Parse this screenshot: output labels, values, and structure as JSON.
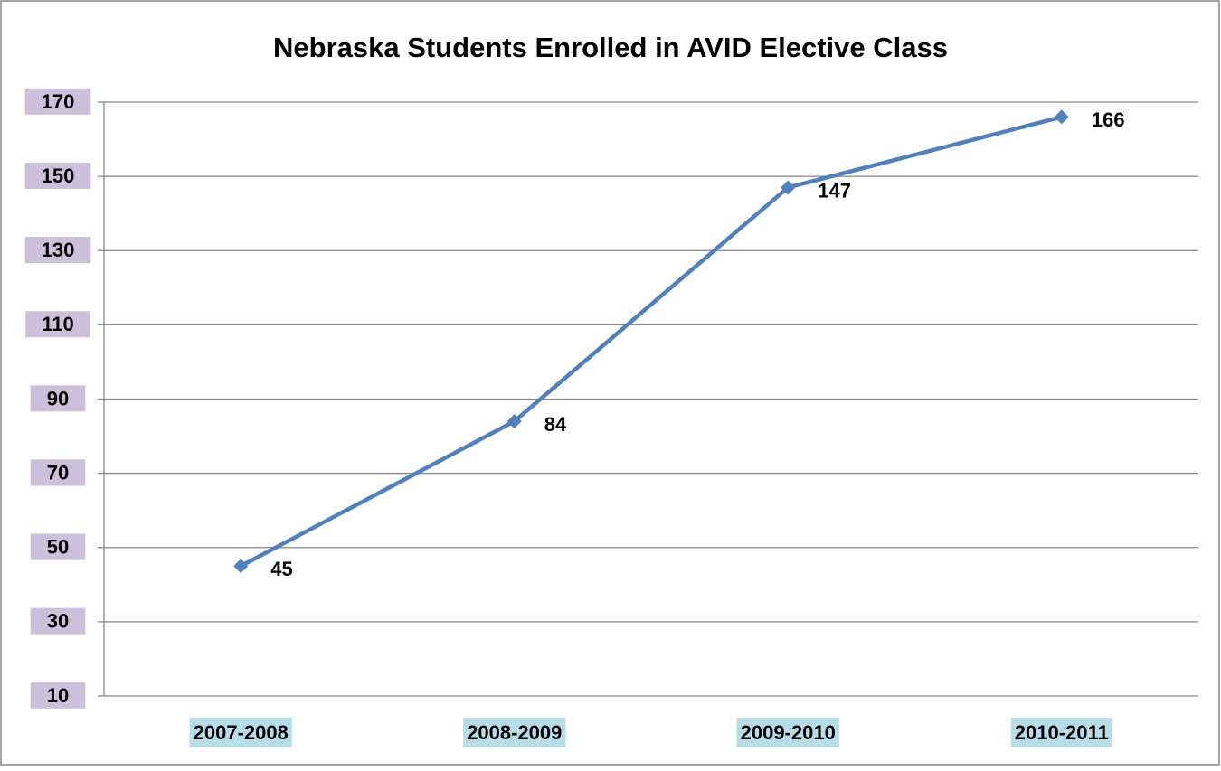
{
  "chart_data": {
    "type": "line",
    "title": "Nebraska Students Enrolled in AVID Elective Class",
    "categories": [
      "2007-2008",
      "2008-2009",
      "2009-2010",
      "2010-2011"
    ],
    "values": [
      45,
      84,
      147,
      166
    ],
    "color": "#4f81bd",
    "ylim": [
      10,
      170
    ],
    "yticks": [
      10,
      30,
      50,
      70,
      90,
      110,
      130,
      150,
      170
    ],
    "grid": true
  }
}
